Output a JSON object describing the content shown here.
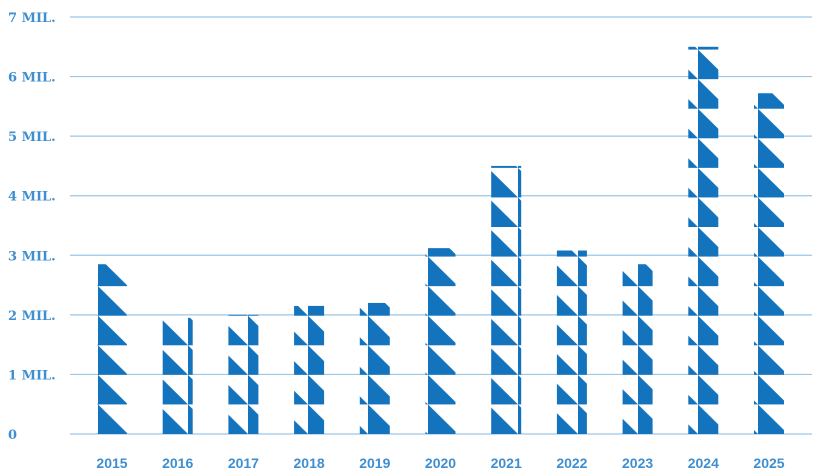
{
  "chart_data": {
    "type": "bar",
    "title": "",
    "xlabel": "",
    "ylabel": "",
    "categories": [
      "2015",
      "2016",
      "2017",
      "2018",
      "2019",
      "2020",
      "2021",
      "2022",
      "2023",
      "2024",
      "2025"
    ],
    "values": [
      2.85,
      1.95,
      2.0,
      2.15,
      2.2,
      3.12,
      4.5,
      3.08,
      2.85,
      6.5,
      5.72
    ],
    "ylim": [
      0,
      7
    ],
    "y_ticks": [
      0,
      1,
      2,
      3,
      4,
      5,
      6,
      7
    ],
    "y_tick_labels": [
      "0",
      "1 MIL.",
      "2 MIL.",
      "3 MIL.",
      "4 MIL.",
      "5 MIL.",
      "6 MIL.",
      "7 MIL."
    ],
    "grid": true,
    "legend": "none",
    "bar_color": "#1473bd",
    "grid_color": "#9cc6e6",
    "label_color": "#3f8fd0"
  }
}
